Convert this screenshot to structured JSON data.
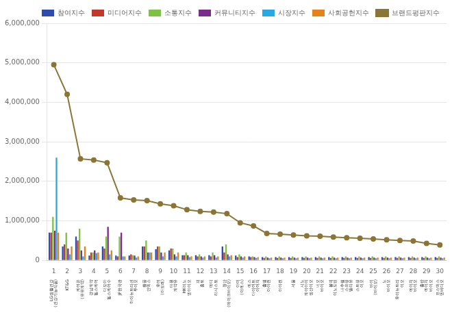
{
  "chart_data": {
    "type": "bar",
    "categories": [
      "1",
      "2",
      "3",
      "4",
      "5",
      "6",
      "7",
      "8",
      "9",
      "10",
      "11",
      "12",
      "13",
      "14",
      "15",
      "16",
      "17",
      "18",
      "19",
      "20",
      "21",
      "22",
      "23",
      "24",
      "25",
      "26",
      "27",
      "28",
      "29",
      "30"
    ],
    "annotations": [
      {
        "x": "1",
        "text": "LG생활건강\n(건강기능식품)"
      },
      {
        "x": "2",
        "text": "KT&G"
      },
      {
        "x": "3",
        "text": "케어온\n(유유제약)"
      },
      {
        "x": "4",
        "text": "경남제약\n헬스케어"
      },
      {
        "x": "5",
        "text": "다모아\n헬스케어수"
      },
      {
        "x": "6",
        "text": "JF한국관"
      },
      {
        "x": "7",
        "text": "하이뉴트리션\n투이오"
      },
      {
        "x": "8",
        "text": "황풍\n인덱스"
      },
      {
        "x": "9",
        "text": "후어\n(아모레)"
      },
      {
        "x": "10",
        "text": "대원\n제약유"
      },
      {
        "x": "11",
        "text": "HK이노\n엔아이오"
      },
      {
        "x": "12",
        "text": "피\n홈토"
      },
      {
        "x": "13",
        "text": "메디\n라시스토"
      },
      {
        "x": "14",
        "text": "청단\n(메이크바이오)"
      },
      {
        "x": "15",
        "text": "아미\n(이에스)"
      },
      {
        "x": "16",
        "text": "에스\n다이어트\n이어치"
      },
      {
        "x": "17",
        "text": "홀빌\n아이전"
      },
      {
        "x": "18",
        "text": "아이전"
      },
      {
        "x": "19",
        "text": "서울"
      },
      {
        "x": "20",
        "text": "시노\n제이아이\n생산이오"
      },
      {
        "x": "21",
        "text": "네오\n바이오"
      },
      {
        "x": "22",
        "text": "볼빅\n이노도틴"
      },
      {
        "x": "23",
        "text": "내추럴\n스프링\n밸리유"
      },
      {
        "x": "24",
        "text": "스트링\n이오"
      },
      {
        "x": "25",
        "text": "바이\n(바이오)"
      },
      {
        "x": "26",
        "text": "노\n바이오"
      },
      {
        "x": "27",
        "text": "후이뉴트리\n이오"
      },
      {
        "x": "28",
        "text": "에이치\n바이오"
      },
      {
        "x": "29",
        "text": "홀란\n에이치\n바이오"
      },
      {
        "x": "30",
        "text": "코스맥스\n엔비디오"
      }
    ],
    "series": [
      {
        "name": "참여지수",
        "color": "#2E4BAE",
        "values": [
          700000,
          350000,
          600000,
          120000,
          350000,
          120000,
          120000,
          350000,
          280000,
          250000,
          130000,
          130000,
          130000,
          350000,
          120000,
          100000,
          80000,
          80000,
          80000,
          80000,
          80000,
          80000,
          80000,
          80000,
          80000,
          80000,
          80000,
          80000,
          80000,
          80000
        ]
      },
      {
        "name": "미디어지수",
        "color": "#C0392B",
        "values": [
          700000,
          400000,
          500000,
          200000,
          300000,
          100000,
          150000,
          350000,
          350000,
          300000,
          130000,
          100000,
          100000,
          200000,
          80000,
          80000,
          60000,
          60000,
          60000,
          60000,
          60000,
          60000,
          60000,
          60000,
          60000,
          60000,
          60000,
          60000,
          60000,
          60000
        ]
      },
      {
        "name": "소통지수",
        "color": "#7DC242",
        "values": [
          1100000,
          700000,
          800000,
          200000,
          600000,
          600000,
          130000,
          500000,
          350000,
          300000,
          200000,
          150000,
          200000,
          400000,
          150000,
          100000,
          100000,
          100000,
          100000,
          100000,
          100000,
          100000,
          100000,
          100000,
          100000,
          100000,
          100000,
          100000,
          100000,
          100000
        ]
      },
      {
        "name": "커뮤니티지수",
        "color": "#7B2D8B",
        "values": [
          750000,
          300000,
          250000,
          250000,
          850000,
          700000,
          120000,
          200000,
          200000,
          150000,
          130000,
          100000,
          130000,
          150000,
          100000,
          80000,
          70000,
          70000,
          70000,
          70000,
          70000,
          70000,
          70000,
          70000,
          70000,
          70000,
          70000,
          70000,
          70000,
          70000
        ]
      },
      {
        "name": "시장지수",
        "color": "#27AAE1",
        "values": [
          2600000,
          150000,
          100000,
          180000,
          150000,
          100000,
          70000,
          200000,
          100000,
          100000,
          80000,
          70000,
          70000,
          100000,
          70000,
          60000,
          50000,
          50000,
          50000,
          50000,
          50000,
          50000,
          50000,
          50000,
          50000,
          50000,
          50000,
          50000,
          50000,
          50000
        ]
      },
      {
        "name": "사회공헌지수",
        "color": "#E6821E",
        "values": [
          700000,
          350000,
          350000,
          200000,
          250000,
          100000,
          100000,
          200000,
          200000,
          200000,
          100000,
          100000,
          100000,
          130000,
          100000,
          80000,
          70000,
          70000,
          70000,
          70000,
          70000,
          70000,
          70000,
          70000,
          70000,
          70000,
          70000,
          70000,
          70000,
          70000
        ]
      },
      {
        "name": "브랜드평판지수",
        "type": "line",
        "marker": "circle",
        "color": "#8B7536",
        "values": [
          4950000,
          4200000,
          2570000,
          2540000,
          2470000,
          1580000,
          1530000,
          1510000,
          1430000,
          1380000,
          1280000,
          1240000,
          1220000,
          1180000,
          950000,
          870000,
          680000,
          660000,
          640000,
          620000,
          610000,
          590000,
          570000,
          560000,
          540000,
          520000,
          500000,
          490000,
          430000,
          390000
        ]
      }
    ],
    "ylim": [
      0,
      6000000
    ],
    "yticks": [
      0,
      {
        "value": 1000000,
        "label": "1,000,000"
      },
      {
        "value": 2000000,
        "label": "2,000,000"
      },
      {
        "value": 3000000,
        "label": "3,000,000"
      },
      {
        "value": 4000000,
        "label": "4,000,000"
      },
      {
        "value": 5000000,
        "label": "5,000,000"
      },
      {
        "value": 6000000,
        "label": "6,000,000"
      }
    ],
    "grid": "y",
    "legend": "upper right"
  }
}
